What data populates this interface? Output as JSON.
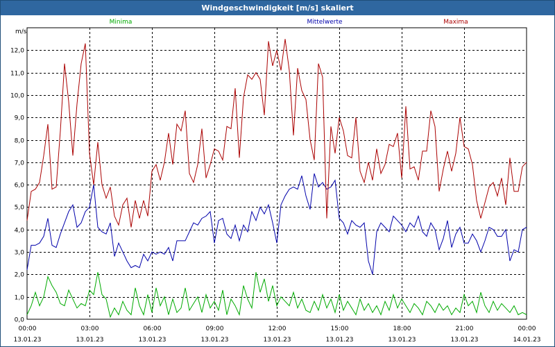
{
  "window": {
    "title": "Windgeschwindigkeit [m/s] skaliert"
  },
  "chart_data": {
    "type": "line",
    "title": "Windgeschwindigkeit [m/s] skaliert",
    "ylabel": "m/s",
    "xlabel": "",
    "ylim": [
      0,
      13
    ],
    "yticks": [
      0.0,
      1.0,
      2.0,
      3.0,
      4.0,
      5.0,
      6.0,
      7.0,
      8.0,
      9.0,
      10.0,
      11.0,
      12.0
    ],
    "ytick_labels": [
      "0,0",
      "1,0",
      "2,0",
      "3,0",
      "4,0",
      "5,0",
      "6,0",
      "7,0",
      "8,0",
      "9,0",
      "10,0",
      "11,0",
      "12,0"
    ],
    "xlim": [
      0,
      24
    ],
    "xticks": [
      0,
      3,
      6,
      9,
      12,
      15,
      18,
      21,
      24
    ],
    "xtick_times": [
      "00:00",
      "03:00",
      "06:00",
      "09:00",
      "12:00",
      "15:00",
      "18:00",
      "21:00",
      "00:00"
    ],
    "xtick_dates": [
      "13.01.23",
      "13.01.23",
      "13.01.23",
      "13.01.23",
      "13.01.23",
      "13.01.23",
      "13.01.23",
      "13.01.23",
      "14.01.23"
    ],
    "grid": true,
    "colors": {
      "minima": "#00aa00",
      "mittelwerte": "#0000aa",
      "maxima": "#aa0000",
      "grid": "#000000",
      "title_bar": "#2f67a0"
    },
    "series": [
      {
        "name": "Minima",
        "key": "minima",
        "x": [
          0,
          0.2,
          0.4,
          0.6,
          0.8,
          1.0,
          1.2,
          1.4,
          1.6,
          1.8,
          2.0,
          2.2,
          2.4,
          2.6,
          2.8,
          3.0,
          3.2,
          3.4,
          3.6,
          3.8,
          4.0,
          4.2,
          4.4,
          4.6,
          4.8,
          5.0,
          5.2,
          5.4,
          5.6,
          5.8,
          6.0,
          6.2,
          6.4,
          6.6,
          6.8,
          7.0,
          7.2,
          7.4,
          7.6,
          7.8,
          8.0,
          8.2,
          8.4,
          8.6,
          8.8,
          9.0,
          9.2,
          9.4,
          9.6,
          9.8,
          10.0,
          10.2,
          10.4,
          10.6,
          10.8,
          11.0,
          11.2,
          11.4,
          11.6,
          11.8,
          12.0,
          12.2,
          12.4,
          12.6,
          12.8,
          13.0,
          13.2,
          13.4,
          13.6,
          13.8,
          14.0,
          14.2,
          14.4,
          14.6,
          14.8,
          15.0,
          15.2,
          15.4,
          15.6,
          15.8,
          16.0,
          16.2,
          16.4,
          16.6,
          16.8,
          17.0,
          17.2,
          17.4,
          17.6,
          17.8,
          18.0,
          18.2,
          18.4,
          18.6,
          18.8,
          19.0,
          19.2,
          19.4,
          19.6,
          19.8,
          20.0,
          20.2,
          20.4,
          20.6,
          20.8,
          21.0,
          21.2,
          21.4,
          21.6,
          21.8,
          22.0,
          22.2,
          22.4,
          22.6,
          22.8,
          23.0,
          23.2,
          23.4,
          23.6,
          23.8,
          24.0
        ],
        "values": [
          0.2,
          0.6,
          1.2,
          0.6,
          1.0,
          1.9,
          1.5,
          1.2,
          0.7,
          0.6,
          1.3,
          0.9,
          0.5,
          0.7,
          0.6,
          1.3,
          1.1,
          2.1,
          1.1,
          0.9,
          0.1,
          0.5,
          0.2,
          0.8,
          0.4,
          0.2,
          1.4,
          0.6,
          0.2,
          1.1,
          0.3,
          1.4,
          0.6,
          1.0,
          0.2,
          0.9,
          0.3,
          0.5,
          1.4,
          0.4,
          0.7,
          1.0,
          0.3,
          1.1,
          0.5,
          0.8,
          0.4,
          1.3,
          0.2,
          0.9,
          0.6,
          0.2,
          1.5,
          0.9,
          0.5,
          2.1,
          1.2,
          1.8,
          0.8,
          1.5,
          0.6,
          1.0,
          0.8,
          0.6,
          1.2,
          0.5,
          0.9,
          0.4,
          0.3,
          0.8,
          0.4,
          1.1,
          0.5,
          0.9,
          0.3,
          1.1,
          0.4,
          0.8,
          0.5,
          0.2,
          0.9,
          0.4,
          0.7,
          0.3,
          0.6,
          0.2,
          0.8,
          0.4,
          1.1,
          0.5,
          0.9,
          0.6,
          0.3,
          0.7,
          0.5,
          0.2,
          0.8,
          0.6,
          0.3,
          0.7,
          0.4,
          0.6,
          0.2,
          0.5,
          0.3,
          1.1,
          0.6,
          0.8,
          0.3,
          1.2,
          0.6,
          0.3,
          0.8,
          0.4,
          0.7,
          0.5,
          0.3,
          0.6,
          0.2,
          0.3,
          0.2
        ]
      },
      {
        "name": "Mittelwerte",
        "key": "mittelwerte",
        "x": [
          0,
          0.2,
          0.4,
          0.6,
          0.8,
          1.0,
          1.2,
          1.4,
          1.6,
          1.8,
          2.0,
          2.2,
          2.4,
          2.6,
          2.8,
          3.0,
          3.2,
          3.4,
          3.6,
          3.8,
          4.0,
          4.2,
          4.4,
          4.6,
          4.8,
          5.0,
          5.2,
          5.4,
          5.6,
          5.8,
          6.0,
          6.2,
          6.4,
          6.6,
          6.8,
          7.0,
          7.2,
          7.4,
          7.6,
          7.8,
          8.0,
          8.2,
          8.4,
          8.6,
          8.8,
          9.0,
          9.2,
          9.4,
          9.6,
          9.8,
          10.0,
          10.2,
          10.4,
          10.6,
          10.8,
          11.0,
          11.2,
          11.4,
          11.6,
          11.8,
          12.0,
          12.2,
          12.4,
          12.6,
          12.8,
          13.0,
          13.2,
          13.4,
          13.6,
          13.8,
          14.0,
          14.2,
          14.4,
          14.6,
          14.8,
          15.0,
          15.2,
          15.4,
          15.6,
          15.8,
          16.0,
          16.2,
          16.4,
          16.6,
          16.8,
          17.0,
          17.2,
          17.4,
          17.6,
          17.8,
          18.0,
          18.2,
          18.4,
          18.6,
          18.8,
          19.0,
          19.2,
          19.4,
          19.6,
          19.8,
          20.0,
          20.2,
          20.4,
          20.6,
          20.8,
          21.0,
          21.2,
          21.4,
          21.6,
          21.8,
          22.0,
          22.2,
          22.4,
          22.6,
          22.8,
          23.0,
          23.2,
          23.4,
          23.6,
          23.8,
          24.0
        ],
        "values": [
          2.2,
          3.3,
          3.3,
          3.4,
          3.7,
          4.5,
          3.3,
          3.2,
          3.8,
          4.3,
          4.8,
          5.1,
          4.1,
          4.3,
          4.8,
          5.0,
          6.0,
          4.1,
          3.9,
          3.8,
          4.3,
          2.8,
          3.4,
          3.0,
          2.6,
          2.3,
          2.4,
          2.3,
          2.9,
          2.6,
          3.0,
          2.9,
          3.0,
          2.9,
          3.2,
          2.6,
          3.5,
          3.5,
          3.5,
          3.9,
          4.3,
          4.2,
          4.5,
          4.6,
          4.8,
          3.4,
          4.4,
          4.5,
          3.8,
          3.6,
          4.2,
          3.5,
          4.2,
          3.9,
          4.8,
          4.4,
          5.0,
          4.7,
          5.1,
          4.3,
          3.4,
          5.1,
          5.5,
          5.8,
          5.9,
          5.8,
          6.4,
          5.5,
          4.9,
          6.5,
          5.9,
          6.1,
          5.8,
          5.9,
          6.2,
          4.5,
          4.3,
          3.8,
          4.4,
          4.2,
          4.1,
          4.3,
          2.6,
          2.0,
          3.9,
          4.3,
          4.1,
          3.9,
          4.6,
          4.4,
          4.2,
          3.9,
          4.3,
          4.1,
          4.6,
          3.9,
          3.7,
          4.3,
          4.0,
          3.1,
          3.6,
          4.4,
          3.2,
          3.8,
          4.1,
          3.4,
          3.4,
          3.8,
          3.5,
          3.0,
          3.5,
          4.1,
          4.0,
          3.7,
          3.7,
          4.0,
          2.6,
          3.1,
          3.0,
          4.0,
          4.1
        ]
      },
      {
        "name": "Maxima",
        "key": "maxima",
        "x": [
          0,
          0.2,
          0.4,
          0.6,
          0.8,
          1.0,
          1.2,
          1.4,
          1.6,
          1.8,
          2.0,
          2.2,
          2.4,
          2.6,
          2.8,
          3.0,
          3.2,
          3.4,
          3.6,
          3.8,
          4.0,
          4.2,
          4.4,
          4.6,
          4.8,
          5.0,
          5.2,
          5.4,
          5.6,
          5.8,
          6.0,
          6.2,
          6.4,
          6.6,
          6.8,
          7.0,
          7.2,
          7.4,
          7.6,
          7.8,
          8.0,
          8.2,
          8.4,
          8.6,
          8.8,
          9.0,
          9.2,
          9.4,
          9.6,
          9.8,
          10.0,
          10.2,
          10.4,
          10.6,
          10.8,
          11.0,
          11.2,
          11.4,
          11.6,
          11.8,
          12.0,
          12.2,
          12.4,
          12.6,
          12.8,
          13.0,
          13.2,
          13.4,
          13.6,
          13.8,
          14.0,
          14.2,
          14.4,
          14.6,
          14.8,
          15.0,
          15.2,
          15.4,
          15.6,
          15.8,
          16.0,
          16.2,
          16.4,
          16.6,
          16.8,
          17.0,
          17.2,
          17.4,
          17.6,
          17.8,
          18.0,
          18.2,
          18.4,
          18.6,
          18.8,
          19.0,
          19.2,
          19.4,
          19.6,
          19.8,
          20.0,
          20.2,
          20.4,
          20.6,
          20.8,
          21.0,
          21.2,
          21.4,
          21.6,
          21.8,
          22.0,
          22.2,
          22.4,
          22.6,
          22.8,
          23.0,
          23.2,
          23.4,
          23.6,
          23.8,
          24.0
        ],
        "values": [
          4.4,
          5.7,
          5.8,
          6.1,
          7.3,
          8.7,
          5.8,
          5.9,
          8.4,
          11.4,
          9.7,
          7.3,
          9.6,
          11.4,
          12.3,
          7.4,
          6.0,
          7.9,
          6.0,
          5.4,
          5.9,
          4.6,
          4.2,
          5.1,
          5.4,
          4.1,
          5.3,
          4.5,
          5.3,
          4.6,
          6.6,
          6.9,
          6.2,
          7.0,
          8.3,
          6.9,
          8.7,
          8.4,
          9.3,
          6.5,
          6.1,
          6.9,
          8.5,
          6.3,
          6.9,
          7.6,
          7.5,
          7.1,
          8.6,
          8.5,
          10.3,
          7.2,
          9.9,
          10.9,
          10.7,
          11.0,
          10.7,
          9.1,
          12.4,
          11.3,
          12.0,
          11.1,
          12.5,
          11.1,
          8.2,
          11.2,
          10.2,
          9.8,
          8.0,
          7.1,
          11.4,
          10.8,
          4.5,
          8.6,
          7.4,
          9.0,
          8.4,
          7.3,
          7.2,
          9.0,
          6.6,
          6.1,
          7.0,
          6.2,
          7.6,
          6.5,
          6.9,
          7.8,
          7.7,
          8.3,
          6.3,
          9.5,
          6.7,
          6.8,
          6.2,
          7.5,
          7.5,
          9.3,
          8.6,
          5.7,
          6.7,
          7.5,
          6.6,
          7.4,
          9.0,
          7.7,
          7.6,
          6.9,
          5.3,
          4.5,
          5.2,
          5.9,
          6.1,
          5.5,
          6.3,
          5.1,
          7.2,
          5.7,
          5.7,
          6.8,
          7.0
        ]
      }
    ]
  }
}
